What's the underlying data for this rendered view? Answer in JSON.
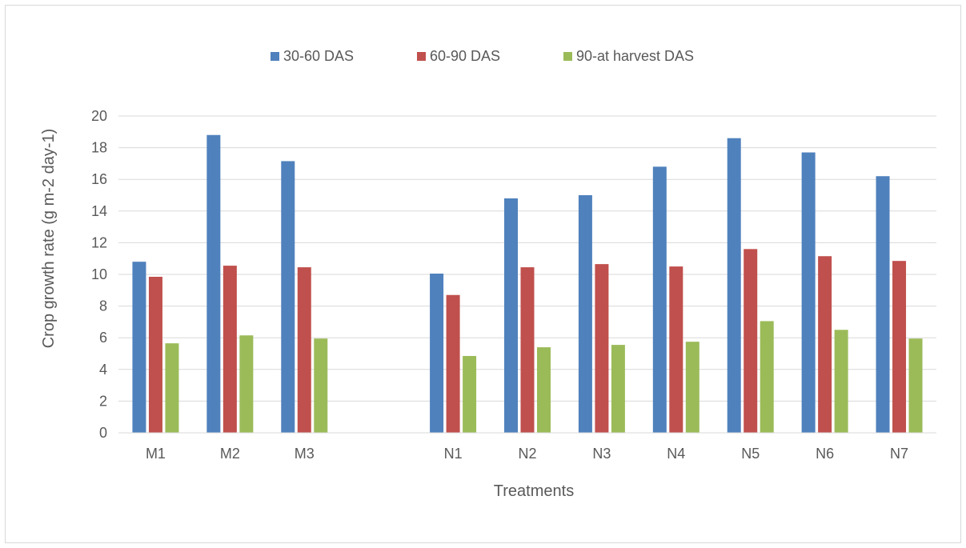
{
  "chart_data": {
    "type": "bar",
    "title": "",
    "xlabel": "Treatments",
    "ylabel": "Crop growth rate (g m-2 day-1)",
    "ylim": [
      0,
      20
    ],
    "yticks": [
      0,
      2,
      4,
      6,
      8,
      10,
      12,
      14,
      16,
      18,
      20
    ],
    "grid": true,
    "legend_position": "top",
    "categories": [
      "M1",
      "M2",
      "M3",
      "",
      "N1",
      "N2",
      "N3",
      "N4",
      "N5",
      "N6",
      "N7"
    ],
    "series": [
      {
        "name": "30-60 DAS",
        "color": "#4f81bd",
        "values": [
          10.8,
          18.8,
          17.15,
          null,
          10.05,
          14.8,
          15.0,
          16.8,
          18.6,
          17.7,
          16.2
        ]
      },
      {
        "name": "60-90 DAS",
        "color": "#c0504d",
        "values": [
          9.85,
          10.55,
          10.45,
          null,
          8.7,
          10.45,
          10.65,
          10.5,
          11.6,
          11.15,
          10.85
        ]
      },
      {
        "name": "90-at harvest DAS",
        "color": "#9bbb59",
        "values": [
          5.65,
          6.15,
          5.95,
          null,
          4.85,
          5.4,
          5.55,
          5.75,
          7.05,
          6.5,
          5.95
        ]
      }
    ]
  }
}
